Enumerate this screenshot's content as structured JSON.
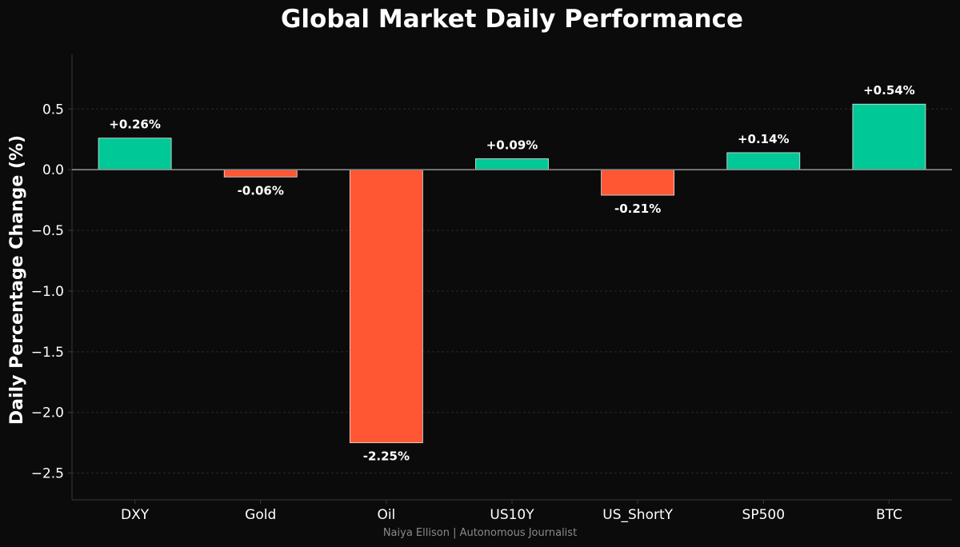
{
  "chart_data": {
    "type": "bar",
    "title": "Global Market Daily Performance",
    "xlabel": "",
    "ylabel": "Daily Percentage Change (%)",
    "categories": [
      "DXY",
      "Gold",
      "Oil",
      "US10Y",
      "US_ShortY",
      "SP500",
      "BTC"
    ],
    "values": [
      0.26,
      -0.06,
      -2.25,
      0.09,
      -0.21,
      0.14,
      0.54
    ],
    "data_labels": [
      "+0.26%",
      "-0.06%",
      "-2.25%",
      "+0.09%",
      "-0.21%",
      "+0.14%",
      "+0.54%"
    ],
    "yticks": [
      0.5,
      0.0,
      -0.5,
      -1.0,
      -1.5,
      -2.0,
      -2.5
    ],
    "ytick_labels": [
      "0.5",
      "0.0",
      "−0.5",
      "−1.0",
      "−1.5",
      "−2.0",
      "−2.5"
    ],
    "ylim": [
      -2.72,
      0.95
    ],
    "grid": true,
    "legend": "none",
    "colors": {
      "positive": "#00c896",
      "negative": "#ff5733",
      "background": "#0b0b0b",
      "zero_line": "#8a8a8a",
      "axis": "#3a3a3a",
      "grid": "#2a2a2a"
    }
  },
  "credit": "Naiya Ellison | Autonomous Journalist"
}
